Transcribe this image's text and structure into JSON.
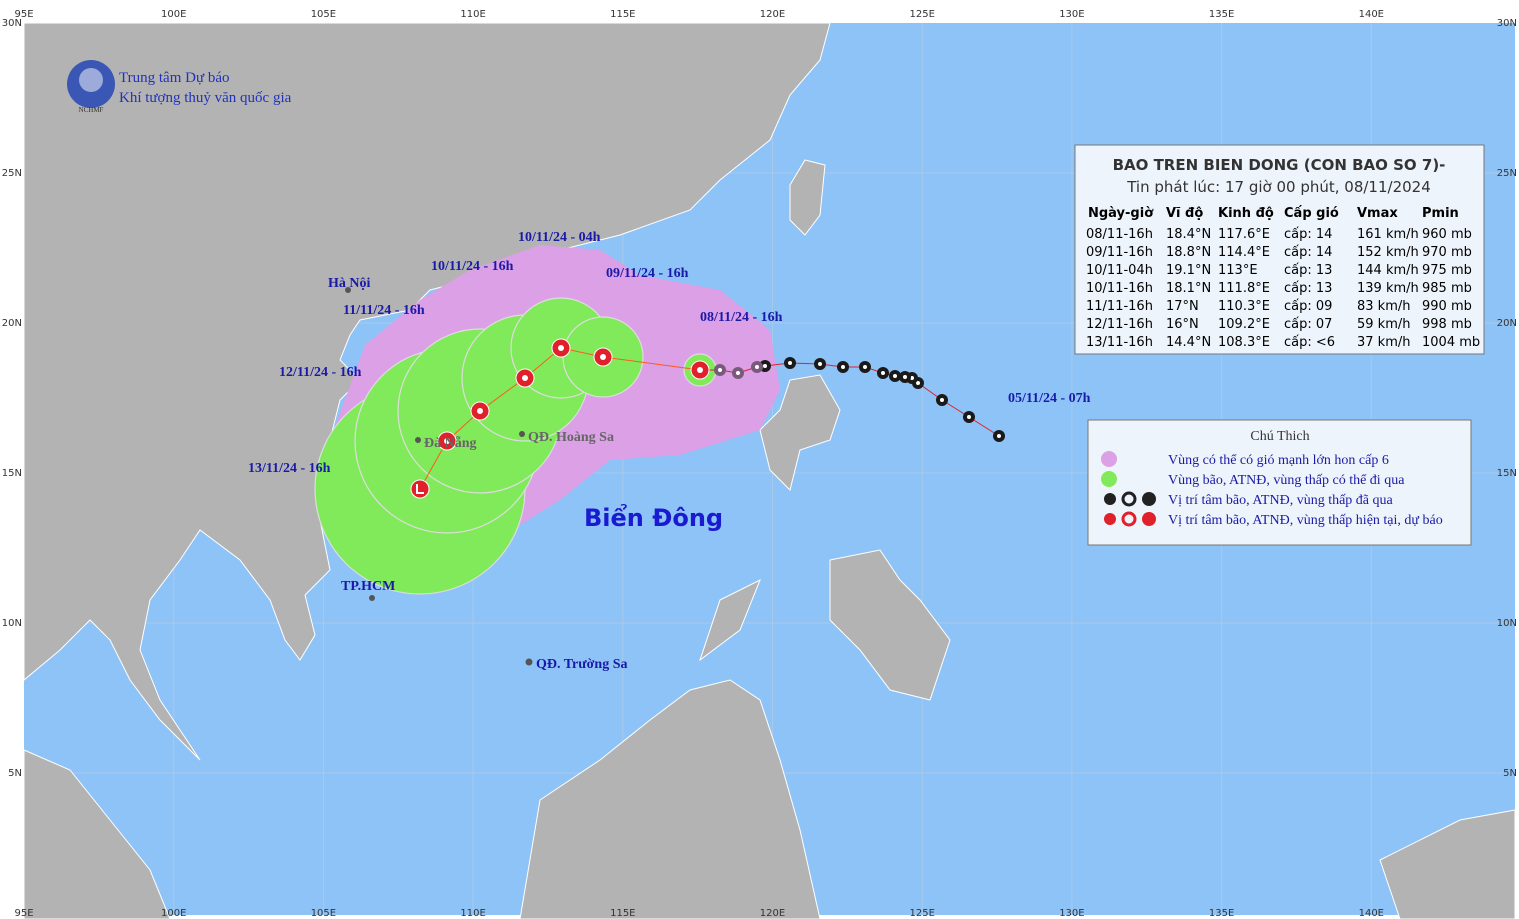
{
  "header": {
    "org_line1": "Trung tâm Dự báo",
    "org_line2": "Khí tượng thuỷ văn quốc gia",
    "logo_text": "NCHMF"
  },
  "axes": {
    "lon_labels": [
      "95E",
      "100E",
      "105E",
      "110E",
      "115E",
      "120E",
      "125E",
      "130E",
      "135E",
      "140E"
    ],
    "lat_labels": [
      "30N",
      "25N",
      "20N",
      "15N",
      "10N",
      "5N"
    ]
  },
  "places": [
    "Hà Nội",
    "Đà Nẵng",
    "QĐ. Hoàng Sa",
    "TP.HCM",
    "QĐ. Trường Sa",
    "Biển Đông"
  ],
  "track_labels": [
    "10/11/24 - 04h",
    "10/11/24 - 16h",
    "09/11/24 - 16h",
    "08/11/24 - 16h",
    "11/11/24 - 16h",
    "12/11/24 - 16h",
    "13/11/24 - 16h",
    "05/11/24 - 07h"
  ],
  "table": {
    "title": "BAO TREN BIEN DONG (CON BAO SO 7)-",
    "subtitle": "Tin phát lúc: 17 giờ 00 phút, 08/11/2024",
    "headers": [
      "Ngày-giờ",
      "Vĩ độ",
      "Kinh độ",
      "Cấp gió",
      "Vmax",
      "Pmin"
    ],
    "rows": [
      [
        "08/11-16h",
        "18.4°N",
        "117.6°E",
        "cấp: 14",
        "161 km/h",
        "960 mb"
      ],
      [
        "09/11-16h",
        "18.8°N",
        "114.4°E",
        "cấp: 14",
        "152 km/h",
        "970 mb"
      ],
      [
        "10/11-04h",
        "19.1°N",
        "113°E",
        "cấp: 13",
        "144 km/h",
        "975 mb"
      ],
      [
        "10/11-16h",
        "18.1°N",
        "111.8°E",
        "cấp: 13",
        "139 km/h",
        "985 mb"
      ],
      [
        "11/11-16h",
        "17°N",
        "110.3°E",
        "cấp: 09",
        "83 km/h",
        "990 mb"
      ],
      [
        "12/11-16h",
        "16°N",
        "109.2°E",
        "cấp: 07",
        "59 km/h",
        "998 mb"
      ],
      [
        "13/11-16h",
        "14.4°N",
        "108.3°E",
        "cấp: <6",
        "37 km/h",
        "1004 mb"
      ]
    ]
  },
  "legend": {
    "title": "Chú Thich",
    "items": [
      "Vùng có thể có gió mạnh lớn hon cấp 6",
      "Vùng bão, ATNĐ, vùng thấp có thể đi qua",
      "Vị trí tâm bão, ATNĐ, vùng thấp đã qua",
      "Vị trí tâm bão, ATNĐ, vùng thấp hiện tại, dự báo"
    ]
  }
}
